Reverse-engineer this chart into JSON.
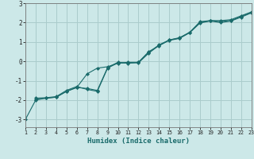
{
  "title": "",
  "xlabel": "Humidex (Indice chaleur)",
  "background_color": "#cce8e8",
  "grid_color": "#aacccc",
  "line_color": "#1a6b6b",
  "marker_color": "#1a6b6b",
  "xlim": [
    1,
    23
  ],
  "ylim": [
    -3.4,
    3.0
  ],
  "xticks": [
    1,
    2,
    3,
    4,
    5,
    6,
    7,
    8,
    9,
    10,
    11,
    12,
    13,
    14,
    15,
    16,
    17,
    18,
    19,
    20,
    21,
    22,
    23
  ],
  "yticks": [
    -3,
    -2,
    -1,
    0,
    1,
    2,
    3
  ],
  "series1": [
    [
      1,
      -3.0
    ],
    [
      2,
      -2.0
    ],
    [
      3,
      -1.9
    ],
    [
      4,
      -1.85
    ],
    [
      5,
      -1.55
    ],
    [
      6,
      -1.35
    ],
    [
      7,
      -0.65
    ],
    [
      8,
      -0.35
    ],
    [
      9,
      -0.28
    ],
    [
      10,
      -0.1
    ],
    [
      11,
      -0.05
    ],
    [
      12,
      -0.05
    ],
    [
      13,
      0.5
    ],
    [
      14,
      0.8
    ],
    [
      15,
      1.1
    ],
    [
      16,
      1.2
    ],
    [
      17,
      1.5
    ],
    [
      18,
      2.05
    ],
    [
      19,
      2.1
    ],
    [
      20,
      2.1
    ],
    [
      21,
      2.15
    ],
    [
      22,
      2.35
    ],
    [
      23,
      2.55
    ]
  ],
  "series2": [
    [
      2,
      -1.95
    ],
    [
      3,
      -1.9
    ],
    [
      4,
      -1.85
    ],
    [
      5,
      -1.55
    ],
    [
      6,
      -1.35
    ],
    [
      7,
      -1.4
    ],
    [
      8,
      -1.5
    ],
    [
      9,
      -0.32
    ],
    [
      10,
      -0.05
    ],
    [
      11,
      -0.1
    ],
    [
      12,
      -0.05
    ],
    [
      13,
      0.45
    ],
    [
      14,
      0.85
    ],
    [
      15,
      1.1
    ],
    [
      16,
      1.22
    ],
    [
      17,
      1.5
    ],
    [
      18,
      2.0
    ],
    [
      19,
      2.1
    ],
    [
      20,
      2.05
    ],
    [
      21,
      2.1
    ],
    [
      22,
      2.32
    ],
    [
      23,
      2.52
    ]
  ],
  "series3": [
    [
      2,
      -1.9
    ],
    [
      3,
      -1.88
    ],
    [
      4,
      -1.82
    ],
    [
      5,
      -1.5
    ],
    [
      6,
      -1.3
    ],
    [
      7,
      -1.45
    ],
    [
      8,
      -1.55
    ],
    [
      9,
      -0.35
    ],
    [
      10,
      -0.08
    ],
    [
      11,
      -0.08
    ],
    [
      12,
      -0.08
    ],
    [
      13,
      0.42
    ],
    [
      14,
      0.82
    ],
    [
      15,
      1.08
    ],
    [
      16,
      1.18
    ],
    [
      17,
      1.48
    ],
    [
      18,
      1.98
    ],
    [
      19,
      2.08
    ],
    [
      20,
      2.0
    ],
    [
      21,
      2.08
    ],
    [
      22,
      2.28
    ],
    [
      23,
      2.5
    ]
  ]
}
